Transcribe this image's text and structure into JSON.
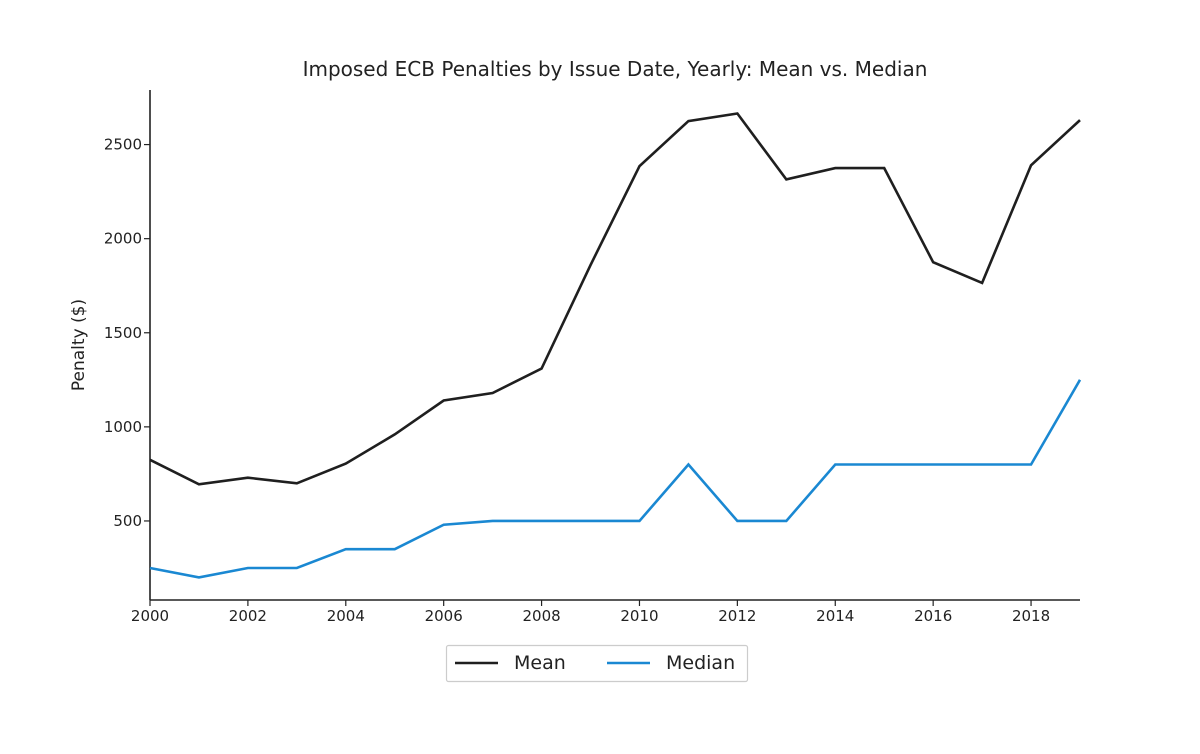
{
  "chart_data": {
    "type": "line",
    "title": "Imposed ECB Penalties by Issue Date, Yearly: Mean vs. Median",
    "xlabel": "",
    "ylabel": "Penalty ($)",
    "xlim": [
      2000,
      2019
    ],
    "ylim": [
      80,
      2790
    ],
    "x": [
      2000,
      2001,
      2002,
      2003,
      2004,
      2005,
      2006,
      2007,
      2008,
      2009,
      2010,
      2011,
      2012,
      2013,
      2014,
      2015,
      2016,
      2017,
      2018,
      2019
    ],
    "xticks": [
      2000,
      2002,
      2004,
      2006,
      2008,
      2010,
      2012,
      2014,
      2016,
      2018
    ],
    "xtick_labels": [
      "2000",
      "2002",
      "2004",
      "2006",
      "2008",
      "2010",
      "2012",
      "2014",
      "2016",
      "2018"
    ],
    "yticks": [
      500,
      1000,
      1500,
      2000,
      2500
    ],
    "ytick_labels": [
      "500",
      "1000",
      "1500",
      "2000",
      "2500"
    ],
    "grid": false,
    "legend_position": "bottom-center",
    "series": [
      {
        "name": "Mean",
        "color": "#1f1f1f",
        "values": [
          825,
          695,
          730,
          700,
          805,
          960,
          1140,
          1180,
          1310,
          1860,
          2385,
          2625,
          2665,
          2315,
          2375,
          2375,
          1875,
          1765,
          2390,
          2630
        ]
      },
      {
        "name": "Median",
        "color": "#1a88d2",
        "values": [
          250,
          200,
          250,
          250,
          350,
          350,
          480,
          500,
          500,
          500,
          500,
          800,
          500,
          500,
          800,
          800,
          800,
          800,
          800,
          1250
        ]
      }
    ]
  }
}
